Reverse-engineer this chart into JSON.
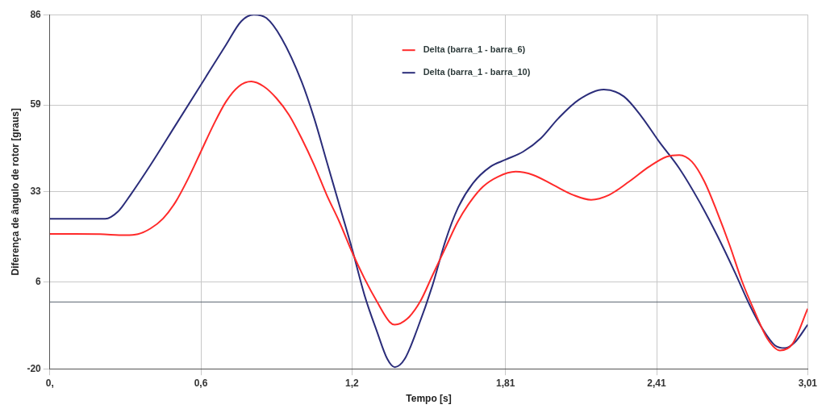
{
  "chart_data": {
    "type": "line",
    "xlabel": "Tempo [s]",
    "ylabel": "Diferença de ângulo de rotor [graus]",
    "xlim": [
      0,
      3.01
    ],
    "ylim": [
      -20,
      86
    ],
    "xticks": [
      {
        "value": 0,
        "label": "0,"
      },
      {
        "value": 0.6,
        "label": "0,6"
      },
      {
        "value": 1.2,
        "label": "1,2"
      },
      {
        "value": 1.81,
        "label": "1,81"
      },
      {
        "value": 2.41,
        "label": "2,41"
      },
      {
        "value": 3.01,
        "label": "3,01"
      }
    ],
    "yticks": [
      -20,
      6,
      33,
      59,
      86
    ],
    "grid": true,
    "legend": "top",
    "marker": "none",
    "line_style": "solid",
    "ref_lines": [
      {
        "axis": "y",
        "value": 0,
        "color": "#5a6470"
      }
    ],
    "series": [
      {
        "name": "Delta (barra_1 - barra_6)",
        "color": "#ff2a2a",
        "x": [
          0,
          0.1,
          0.2,
          0.3,
          0.35,
          0.4,
          0.45,
          0.5,
          0.55,
          0.6,
          0.65,
          0.7,
          0.75,
          0.8,
          0.85,
          0.9,
          0.95,
          1.0,
          1.05,
          1.1,
          1.15,
          1.2,
          1.25,
          1.3,
          1.35,
          1.37,
          1.42,
          1.47,
          1.52,
          1.57,
          1.62,
          1.67,
          1.72,
          1.78,
          1.85,
          1.92,
          2.0,
          2.08,
          2.15,
          2.22,
          2.3,
          2.38,
          2.45,
          2.5,
          2.55,
          2.6,
          2.65,
          2.7,
          2.75,
          2.8,
          2.85,
          2.9,
          2.95,
          3.01
        ],
        "values": [
          20.4,
          20.4,
          20.3,
          20,
          20.3,
          22,
          25,
          30,
          37,
          45,
          53,
          60,
          64.5,
          66,
          64.5,
          61,
          56,
          49,
          41,
          32,
          24,
          15,
          7,
          0,
          -6,
          -6.8,
          -5,
          0,
          8,
          16,
          24,
          30,
          34.5,
          37.5,
          39,
          38,
          35,
          32,
          30.6,
          32,
          36,
          40.5,
          43.5,
          44,
          42,
          36,
          27,
          17,
          6,
          -3,
          -11,
          -14.5,
          -12.5,
          -2
        ]
      },
      {
        "name": "Delta (barra_1 - barra_10)",
        "color": "#2b2d7a",
        "x": [
          0,
          0.1,
          0.22,
          0.27,
          0.32,
          0.4,
          0.5,
          0.6,
          0.7,
          0.76,
          0.81,
          0.86,
          0.92,
          1.0,
          1.05,
          1.1,
          1.15,
          1.2,
          1.25,
          1.3,
          1.34,
          1.37,
          1.41,
          1.46,
          1.52,
          1.57,
          1.62,
          1.68,
          1.75,
          1.81,
          1.88,
          1.95,
          2.02,
          2.1,
          2.2,
          2.28,
          2.35,
          2.42,
          2.5,
          2.58,
          2.65,
          2.72,
          2.78,
          2.83,
          2.88,
          2.92,
          2.96,
          3.01
        ],
        "values": [
          24.9,
          24.9,
          24.9,
          27,
          32,
          41,
          53,
          65,
          77,
          84,
          86,
          85,
          79,
          66,
          55,
          42,
          29,
          16,
          2,
          -9,
          -17,
          -19.5,
          -17,
          -8,
          5,
          18,
          28,
          35.5,
          40.5,
          42.6,
          45,
          49,
          55,
          60.5,
          63.6,
          61.5,
          55.5,
          48,
          40,
          30,
          20,
          9,
          -1,
          -8,
          -13,
          -13.8,
          -12,
          -6.8
        ]
      }
    ]
  }
}
